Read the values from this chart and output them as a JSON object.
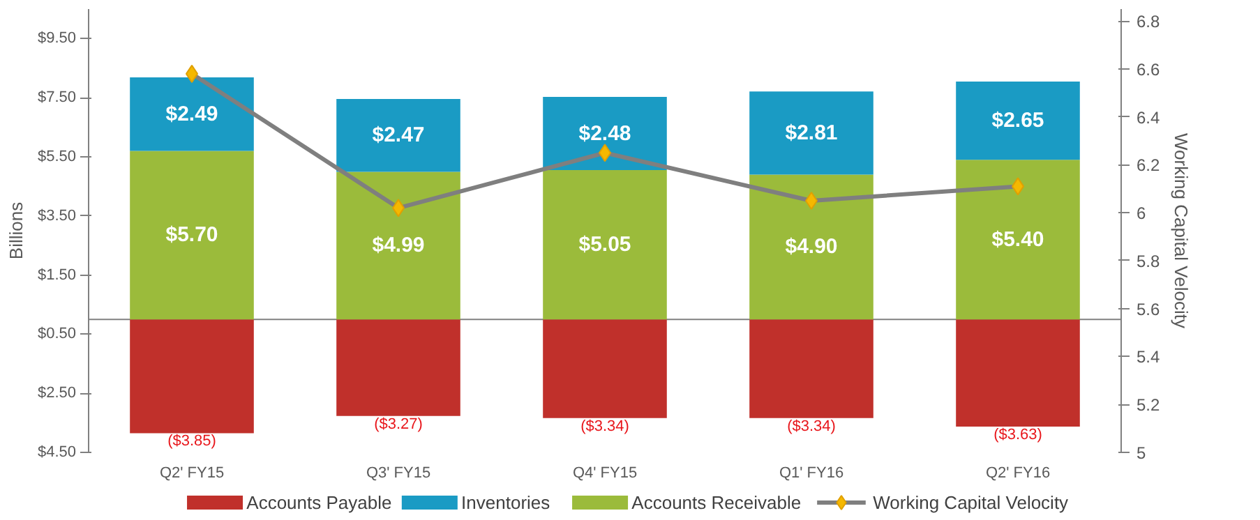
{
  "chart_data": {
    "type": "bar",
    "stacked": true,
    "categories": [
      "Q2' FY15",
      "Q3' FY15",
      "Q4' FY15",
      "Q1' FY16",
      "Q2' FY16"
    ],
    "ylabel": "Billions",
    "y2label": "Working Capital Velocity",
    "ylim": [
      -4.5,
      10.5
    ],
    "yticks": [
      {
        "value": 9.5,
        "label": "$9.50"
      },
      {
        "value": 7.5,
        "label": "$7.50"
      },
      {
        "value": 5.5,
        "label": "$5.50"
      },
      {
        "value": 3.5,
        "label": "$3.50"
      },
      {
        "value": 1.5,
        "label": "$1.50"
      },
      {
        "value": -0.5,
        "label": "$0.50"
      },
      {
        "value": -2.5,
        "label": "$2.50"
      },
      {
        "value": -4.5,
        "label": "$4.50"
      }
    ],
    "y2lim": [
      5.0,
      6.85
    ],
    "y2ticks": [
      5.0,
      5.2,
      5.4,
      5.6,
      5.8,
      6.0,
      6.2,
      6.4,
      6.6,
      6.8
    ],
    "series": [
      {
        "name": "Accounts Payable",
        "color": "#c0302b",
        "values": [
          -3.85,
          -3.27,
          -3.34,
          -3.34,
          -3.63
        ],
        "value_labels": [
          "($3.85)",
          "($3.27)",
          "($3.34)",
          "($3.34)",
          "($3.63)"
        ]
      },
      {
        "name": "Accounts Receivable",
        "color": "#9bbb3b",
        "values": [
          5.7,
          4.99,
          5.05,
          4.9,
          5.4
        ],
        "value_labels": [
          "$5.70",
          "$4.99",
          "$5.05",
          "$4.90",
          "$5.40"
        ]
      },
      {
        "name": "Inventories",
        "color": "#1a9bc4",
        "values": [
          2.49,
          2.47,
          2.48,
          2.81,
          2.65
        ],
        "value_labels": [
          "$2.49",
          "$2.47",
          "$2.48",
          "$2.81",
          "$2.65"
        ]
      },
      {
        "name": "Working Capital Velocity",
        "type": "line",
        "axis": "y2",
        "color": "#7f7f7f",
        "marker": "diamond",
        "values": [
          6.58,
          6.02,
          6.25,
          6.05,
          6.11
        ]
      }
    ],
    "grid": false,
    "legend": "bottom"
  }
}
